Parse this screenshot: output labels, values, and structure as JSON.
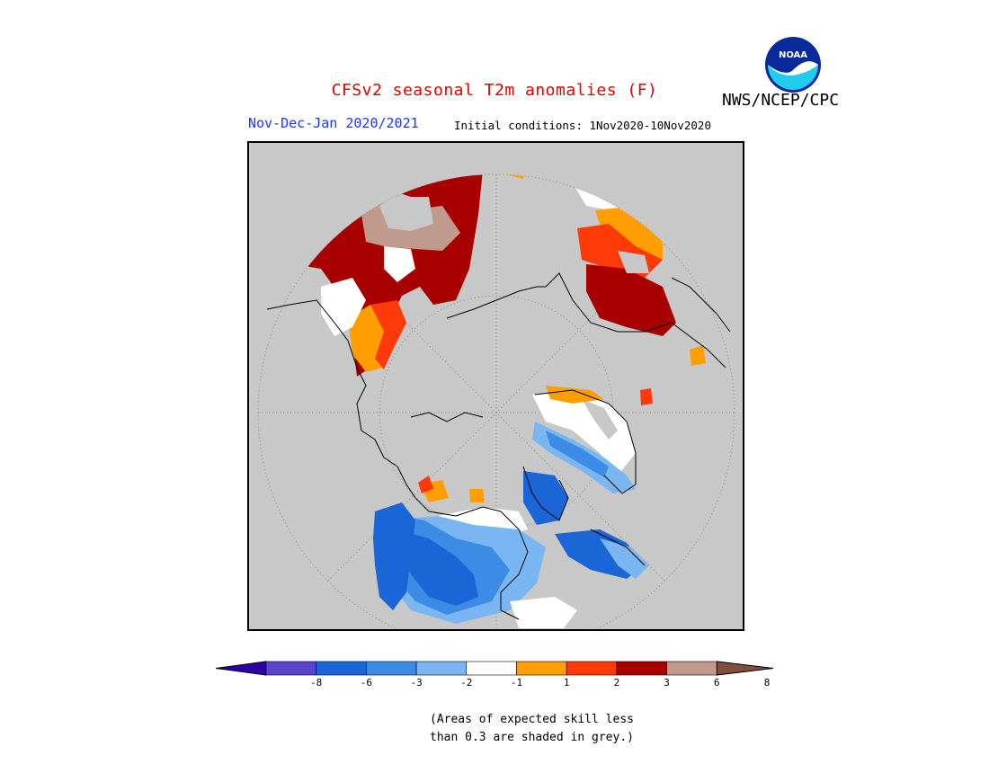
{
  "header": {
    "title": "CFSv2 seasonal T2m anomalies (F)",
    "period": "Nov-Dec-Jan 2020/2021",
    "initial_conditions": "Initial conditions: 1Nov2020-10Nov2020",
    "agency": "NWS/NCEP/CPC",
    "logo_text": "NOAA"
  },
  "legend": {
    "tick_labels": [
      "-8",
      "-6",
      "-3",
      "-2",
      "-1",
      "1",
      "2",
      "3",
      "6",
      "8"
    ],
    "colors": [
      "#2e00a8",
      "#5a44cc",
      "#1a66d6",
      "#3c8ce6",
      "#7ab6f2",
      "#ffffff",
      "#ff9e00",
      "#ff3a0a",
      "#a80000",
      "#c09a8c",
      "#80503c"
    ]
  },
  "note": "(Areas of expected skill less\nthan 0.3 are shaded in grey.)",
  "map_colors": {
    "background": "#c8c8c8",
    "dark_red": "#a80000",
    "red": "#ff3a0a",
    "orange": "#ff9e00",
    "pink_brown": "#c09a8c",
    "white": "#ffffff",
    "light_blue": "#7ab6f2",
    "mid_blue": "#3c8ce6",
    "blue": "#1a66d6"
  }
}
